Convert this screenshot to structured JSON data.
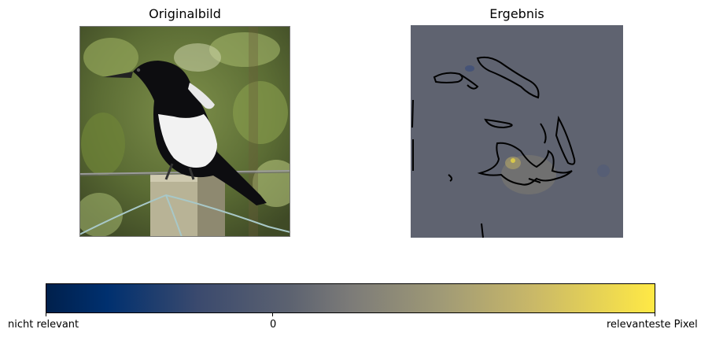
{
  "panels": {
    "left": {
      "title": "Originalbild"
    },
    "right": {
      "title": "Ergebnis"
    }
  },
  "colorbar": {
    "tick_labels": [
      "nicht relevant",
      "0",
      "relevanteste Pixel"
    ],
    "colors": [
      "#00204c",
      "#7c7b78",
      "#ffe945"
    ]
  },
  "colors": {
    "overlay_background": "#5f6370",
    "contour": "#000000"
  }
}
